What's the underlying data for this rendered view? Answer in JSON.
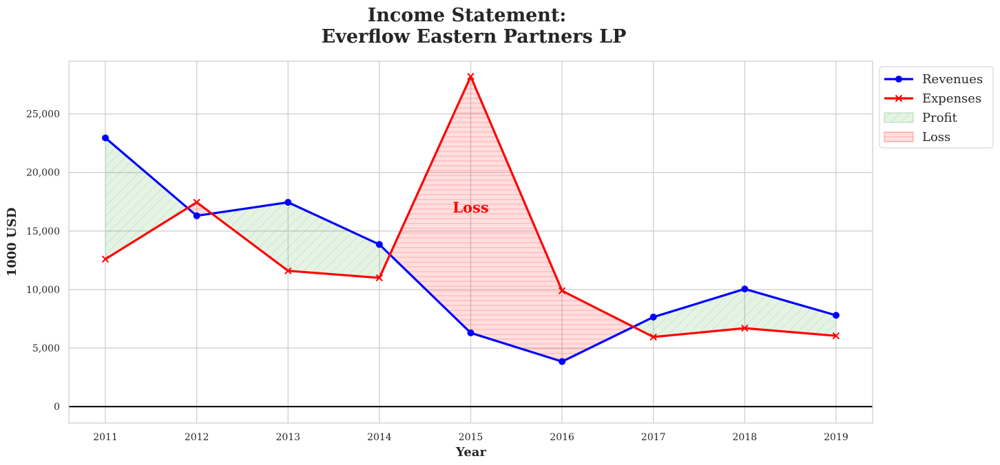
{
  "chart_data": {
    "type": "line",
    "title_line1": "Income Statement:",
    "title_line2": "Everflow Eastern Partners LP",
    "xlabel": "Year",
    "ylabel": "1000 USD",
    "x": [
      2011,
      2012,
      2013,
      2014,
      2015,
      2016,
      2017,
      2018,
      2019
    ],
    "x_tick_labels": [
      "2011",
      "2012",
      "2013",
      "2014",
      "2015",
      "2016",
      "2017",
      "2018",
      "2019"
    ],
    "y_ticks": [
      0,
      5000,
      10000,
      15000,
      20000,
      25000
    ],
    "y_tick_labels": [
      "0",
      "5,000",
      "10,000",
      "15,000",
      "20,000",
      "25,000"
    ],
    "xlim": [
      2010.6,
      2019.4
    ],
    "ylim": [
      -1400,
      29500
    ],
    "grid": true,
    "legend_position": "outside-top-right",
    "series": [
      {
        "name": "Revenues",
        "color": "#0000ff",
        "marker": "circle",
        "values": [
          22950,
          16300,
          17450,
          13850,
          6300,
          3850,
          7650,
          10050,
          7800
        ]
      },
      {
        "name": "Expenses",
        "color": "#ff0000",
        "marker": "x",
        "values": [
          12600,
          17450,
          11600,
          11000,
          28200,
          9900,
          5950,
          6700,
          6050
        ]
      }
    ],
    "fills": [
      {
        "name": "Profit",
        "color": "#2ca02c",
        "hatch": "diagonal",
        "condition": "revenues_above_expenses"
      },
      {
        "name": "Loss",
        "color": "#ff0000",
        "hatch": "horizontal",
        "condition": "expenses_above_revenues"
      }
    ],
    "annotations": [
      {
        "text": "Loss",
        "x": 2015,
        "y": 17000,
        "color": "#ff0000"
      }
    ]
  }
}
